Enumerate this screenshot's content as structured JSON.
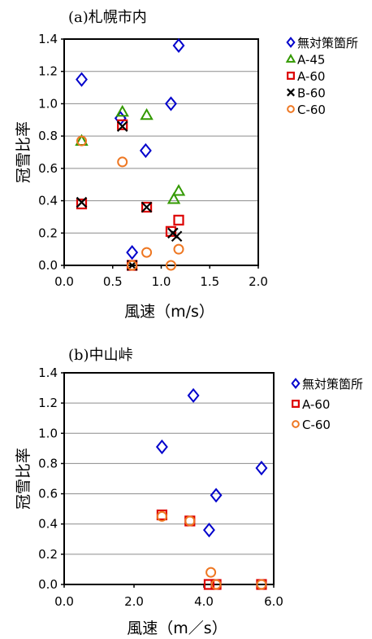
{
  "chart_data": [
    {
      "type": "scatter",
      "title": "(a)札幌市内",
      "xlabel": "風速（m/s）",
      "ylabel": "冠雪比率",
      "xlim": [
        0,
        2
      ],
      "ylim": [
        0,
        1.4
      ],
      "xticks": [
        "0.0",
        "0.5",
        "1.0",
        "1.5",
        "2.0"
      ],
      "yticks": [
        "0.0",
        "0.2",
        "0.4",
        "0.6",
        "0.8",
        "1.0",
        "1.2",
        "1.4"
      ],
      "grid": "horizontal",
      "legend_position": "right",
      "series": [
        {
          "name": "無対策箇所",
          "marker": "diamond",
          "color": "#0000cc",
          "points": [
            [
              0.18,
              1.15
            ],
            [
              0.58,
              0.91
            ],
            [
              0.84,
              0.71
            ],
            [
              0.7,
              0.08
            ],
            [
              1.1,
              1.0
            ],
            [
              1.18,
              1.36
            ]
          ]
        },
        {
          "name": "A-45",
          "marker": "triangle",
          "color": "#339900",
          "points": [
            [
              0.18,
              0.77
            ],
            [
              0.6,
              0.95
            ],
            [
              0.85,
              0.93
            ],
            [
              1.13,
              0.41
            ],
            [
              1.18,
              0.46
            ]
          ]
        },
        {
          "name": "A-60",
          "marker": "square",
          "color": "#dd0000",
          "points": [
            [
              0.18,
              0.38
            ],
            [
              0.6,
              0.87
            ],
            [
              0.85,
              0.36
            ],
            [
              0.7,
              0.0
            ],
            [
              1.1,
              0.21
            ],
            [
              1.18,
              0.28
            ]
          ]
        },
        {
          "name": "B-60",
          "marker": "x",
          "color": "#000000",
          "points": [
            [
              0.18,
              0.39
            ],
            [
              0.6,
              0.86
            ],
            [
              0.85,
              0.36
            ],
            [
              0.7,
              0.0
            ],
            [
              1.12,
              0.2
            ],
            [
              1.16,
              0.18
            ]
          ]
        },
        {
          "name": "C-60",
          "marker": "circle",
          "color": "#ee7722",
          "points": [
            [
              0.18,
              0.77
            ],
            [
              0.6,
              0.64
            ],
            [
              0.85,
              0.08
            ],
            [
              1.1,
              0.0
            ],
            [
              1.18,
              0.1
            ],
            [
              0.7,
              0.0
            ]
          ]
        }
      ]
    },
    {
      "type": "scatter",
      "title": "(b)中山峠",
      "xlabel": "風速（m／s）",
      "ylabel": "冠雪比率",
      "xlim": [
        0,
        6
      ],
      "ylim": [
        0,
        1.4
      ],
      "xticks": [
        "0.0",
        "2.0",
        "4.0",
        "6.0"
      ],
      "yticks": [
        "0.0",
        "0.2",
        "0.4",
        "0.6",
        "0.8",
        "1.0",
        "1.2",
        "1.4"
      ],
      "grid": "horizontal",
      "legend_position": "right",
      "series": [
        {
          "name": "無対策箇所",
          "marker": "diamond",
          "color": "#0000cc",
          "points": [
            [
              2.8,
              0.91
            ],
            [
              3.7,
              1.25
            ],
            [
              4.35,
              0.59
            ],
            [
              4.15,
              0.36
            ],
            [
              5.65,
              0.77
            ]
          ]
        },
        {
          "name": "A-60",
          "marker": "square",
          "color": "#dd0000",
          "points": [
            [
              2.8,
              0.46
            ],
            [
              3.6,
              0.42
            ],
            [
              4.15,
              0.0
            ],
            [
              4.35,
              0.0
            ],
            [
              5.65,
              0.0
            ]
          ]
        },
        {
          "name": "C-60",
          "marker": "circle",
          "color": "#ee7722",
          "points": [
            [
              2.8,
              0.45
            ],
            [
              3.6,
              0.42
            ],
            [
              4.2,
              0.08
            ],
            [
              4.35,
              0.0
            ],
            [
              5.65,
              0.0
            ]
          ]
        }
      ]
    }
  ]
}
